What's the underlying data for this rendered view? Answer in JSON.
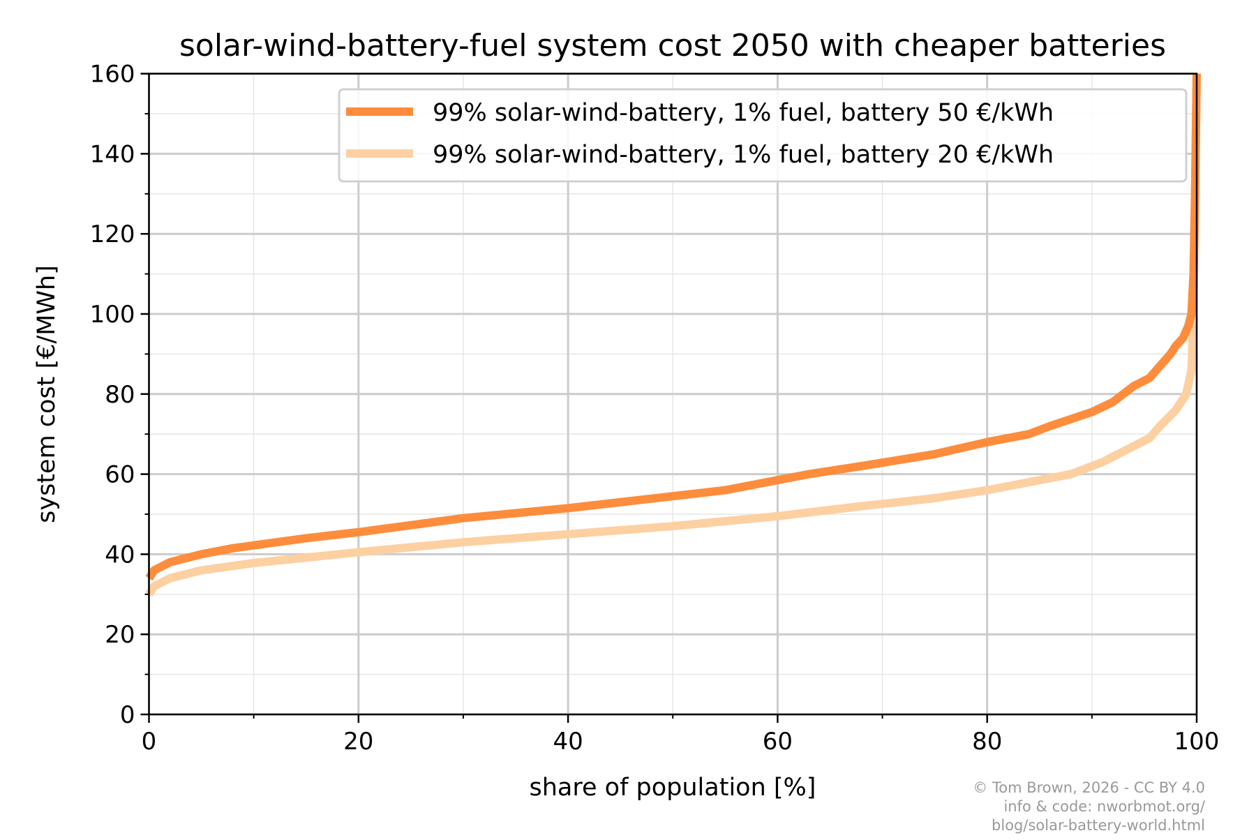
{
  "chart_data": {
    "type": "line",
    "title": "solar-wind-battery-fuel system cost 2050 with cheaper batteries",
    "xlabel": "share of population [%]",
    "ylabel": "system cost [€/MWh]",
    "xlim": [
      0,
      100
    ],
    "ylim": [
      0,
      160
    ],
    "xticks": [
      0,
      20,
      40,
      60,
      80,
      100
    ],
    "yticks": [
      0,
      20,
      40,
      60,
      80,
      100,
      120,
      140,
      160
    ],
    "grid": true,
    "legend_position": "top-right",
    "series": [
      {
        "name": "99% solar-wind-battery, 1% fuel, battery 50 €/kWh",
        "color": "#fd8d3c",
        "x": [
          0,
          0.5,
          2,
          5,
          8,
          15,
          20,
          30,
          40,
          50,
          55,
          60,
          63,
          68,
          75,
          80,
          84,
          86,
          90,
          92,
          94,
          95.5,
          96.5,
          97.5,
          98,
          98.7,
          99.2,
          99.5,
          99.7,
          99.85,
          100
        ],
        "y": [
          34,
          36,
          38,
          40,
          41.5,
          44,
          45.5,
          49,
          51.5,
          54.5,
          56,
          58.5,
          60,
          62,
          65,
          68,
          70,
          72,
          75.5,
          78,
          82,
          84,
          87,
          90,
          92,
          94,
          97,
          100,
          110,
          130,
          160
        ]
      },
      {
        "name": "99% solar-wind-battery, 1% fuel, battery 20 €/kWh",
        "color": "#fdd0a2",
        "x": [
          0,
          0.5,
          2,
          5,
          10,
          20,
          30,
          40,
          50,
          60,
          68,
          75,
          80,
          88,
          91,
          94,
          95.5,
          96.5,
          98,
          99,
          99.5,
          99.7,
          99.85,
          100
        ],
        "y": [
          30,
          32,
          34,
          36,
          37.8,
          40.5,
          43,
          45,
          47,
          49.5,
          52,
          54,
          56,
          60,
          63,
          67,
          69,
          72,
          76,
          80,
          86,
          100,
          130,
          160
        ]
      }
    ],
    "annotation": [
      "© Tom Brown, 2026 - CC BY 4.0",
      "info & code: nworbmot.org/",
      "blog/solar-battery-world.html"
    ]
  }
}
